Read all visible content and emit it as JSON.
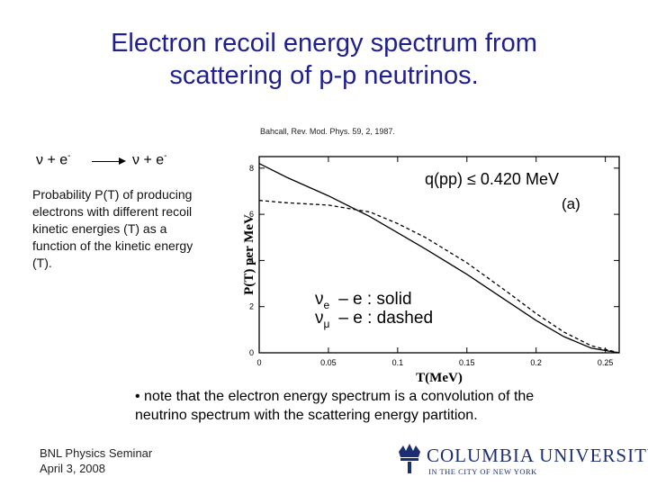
{
  "title": {
    "line1": "Electron recoil energy spectrum from",
    "line2": "scattering of p-p neutrinos."
  },
  "citation": "Bahcall, Rev. Mod. Phys. 59, 2, 1987.",
  "reaction": {
    "left_symbol": "ν + e",
    "left_sup": "-",
    "right_symbol": "ν + e",
    "right_sup": "-"
  },
  "description": "Probability P(T) of producing electrons with different recoil kinetic energies (T) as a function of the kinetic energy (T).",
  "note": "• note that the electron energy spectrum is a convolution of the neutrino spectrum with the scattering energy partition.",
  "footer": {
    "line1": "BNL Physics Seminar",
    "line2": "April 3, 2008"
  },
  "logo": {
    "name": "COLUMBIA UNIVERSITY",
    "subtitle": "IN THE CITY OF NEW YORK",
    "color": "#1c2e73"
  },
  "chart_data": {
    "type": "line",
    "xlabel": "T(MeV)",
    "ylabel": "P(T) per MeV",
    "xlim": [
      0,
      0.26
    ],
    "ylim": [
      0,
      8.5
    ],
    "x_ticks": [
      0,
      0.05,
      0.1,
      0.15,
      0.2,
      0.25
    ],
    "x_tick_labels": [
      "0",
      "0.05",
      "0.1",
      "0.15",
      "0.2",
      "0.25"
    ],
    "y_ticks": [
      0,
      2,
      4,
      6,
      8
    ],
    "y_tick_labels": [
      "0",
      "2",
      "4",
      "6",
      "8"
    ],
    "annotation": "q(pp) ≤ 0.420 MeV",
    "panel_label": "(a)",
    "legend": [
      {
        "symbol": "ν",
        "sub": "e",
        "text": "– e : solid"
      },
      {
        "symbol": "ν",
        "sub": "μ",
        "text": "– e : dashed"
      }
    ],
    "series": [
      {
        "style": "solid",
        "x": [
          0,
          0.02,
          0.05,
          0.08,
          0.1,
          0.12,
          0.15,
          0.18,
          0.2,
          0.22,
          0.24,
          0.26
        ],
        "y": [
          8.2,
          7.6,
          6.8,
          5.9,
          5.2,
          4.5,
          3.4,
          2.2,
          1.4,
          0.7,
          0.2,
          0.0
        ]
      },
      {
        "style": "dashed",
        "x": [
          0,
          0.02,
          0.05,
          0.08,
          0.1,
          0.12,
          0.15,
          0.18,
          0.2,
          0.22,
          0.24,
          0.26
        ],
        "y": [
          6.6,
          6.5,
          6.4,
          6.1,
          5.6,
          5.0,
          3.9,
          2.6,
          1.7,
          0.9,
          0.3,
          0.0
        ]
      }
    ]
  }
}
